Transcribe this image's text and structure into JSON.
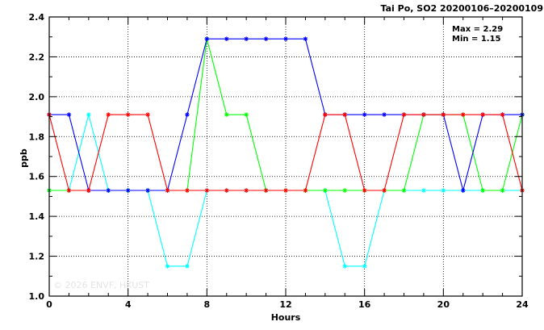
{
  "chart_data": {
    "type": "line",
    "title": "Tai Po, SO2 20200106–20200109",
    "xlabel": "Hours",
    "ylabel": "ppb",
    "xlim": [
      0,
      24
    ],
    "ylim": [
      1.0,
      2.4
    ],
    "xticks": [
      0,
      4,
      8,
      12,
      16,
      20,
      24
    ],
    "yticks": [
      1.0,
      1.2,
      1.4,
      1.6,
      1.8,
      2.0,
      2.2,
      2.4
    ],
    "xtick_labels": [
      "0",
      "4",
      "8",
      "12",
      "16",
      "20",
      "24"
    ],
    "ytick_labels": [
      "1.0",
      "1.2",
      "1.4",
      "1.6",
      "1.8",
      "2.0",
      "2.2",
      "2.4"
    ],
    "grid": true,
    "stats": [
      "Max = 2.29",
      "Min = 1.15"
    ],
    "watermark": "© 2026  ENVF, HKUST",
    "x": [
      0,
      1,
      2,
      3,
      4,
      5,
      6,
      7,
      8,
      9,
      10,
      11,
      12,
      13,
      14,
      15,
      16,
      17,
      18,
      19,
      20,
      21,
      22,
      23,
      24
    ],
    "series": [
      {
        "color": "#00ffff",
        "values": [
          1.53,
          1.53,
          1.91,
          1.53,
          1.53,
          1.53,
          1.15,
          1.15,
          1.53,
          1.53,
          1.53,
          1.53,
          1.53,
          1.53,
          1.53,
          1.15,
          1.15,
          1.53,
          1.53,
          1.53,
          1.53,
          1.53,
          1.53,
          1.53,
          1.53
        ]
      },
      {
        "color": "#00ff00",
        "values": [
          1.53,
          1.53,
          1.53,
          1.53,
          1.53,
          1.53,
          1.53,
          1.53,
          2.29,
          1.91,
          1.91,
          1.53,
          1.53,
          1.53,
          1.53,
          1.53,
          1.53,
          1.53,
          1.53,
          1.91,
          1.91,
          1.91,
          1.53,
          1.53,
          1.91
        ]
      },
      {
        "color": "#0000ff",
        "values": [
          1.91,
          1.91,
          1.53,
          1.53,
          1.53,
          1.53,
          1.53,
          1.91,
          2.29,
          2.29,
          2.29,
          2.29,
          2.29,
          2.29,
          1.91,
          1.91,
          1.91,
          1.91,
          1.91,
          1.91,
          1.91,
          1.53,
          1.91,
          1.91,
          1.91
        ]
      },
      {
        "color": "#ff0000",
        "values": [
          1.91,
          1.53,
          1.53,
          1.91,
          1.91,
          1.91,
          1.53,
          1.53,
          1.53,
          1.53,
          1.53,
          1.53,
          1.53,
          1.53,
          1.91,
          1.91,
          1.53,
          1.53,
          1.91,
          1.91,
          1.91,
          1.91,
          1.91,
          1.91,
          1.53
        ]
      }
    ]
  }
}
